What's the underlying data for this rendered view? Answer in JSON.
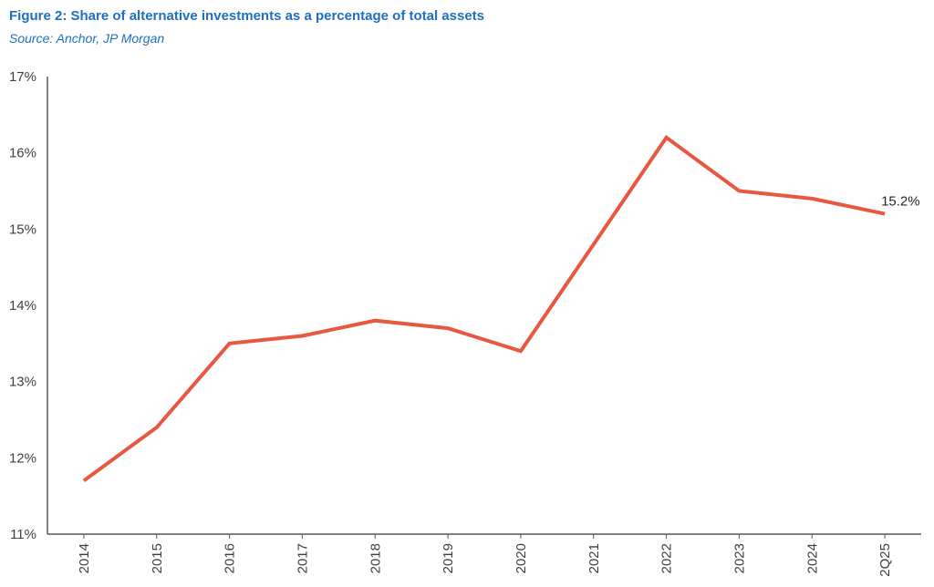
{
  "header": {
    "title": "Figure 2: Share of alternative investments as a percentage of total assets",
    "subtitle": "Source: Anchor, JP Morgan"
  },
  "chart_data": {
    "type": "line",
    "categories": [
      "2014",
      "2015",
      "2016",
      "2017",
      "2018",
      "2019",
      "2020",
      "2021",
      "2022",
      "2023",
      "2024",
      "2Q25"
    ],
    "series": [
      {
        "values": [
          11.7,
          12.4,
          13.5,
          13.6,
          13.8,
          13.7,
          13.4,
          14.8,
          16.2,
          15.5,
          15.4,
          15.2
        ],
        "color": "#e8573f"
      }
    ],
    "y_ticks": [
      "11%",
      "12%",
      "13%",
      "14%",
      "15%",
      "16%",
      "17%"
    ],
    "ylim": [
      11,
      17
    ],
    "annotations": [
      {
        "category": "2Q25",
        "text": "15.2%"
      }
    ],
    "grid": false,
    "legend": "none"
  }
}
